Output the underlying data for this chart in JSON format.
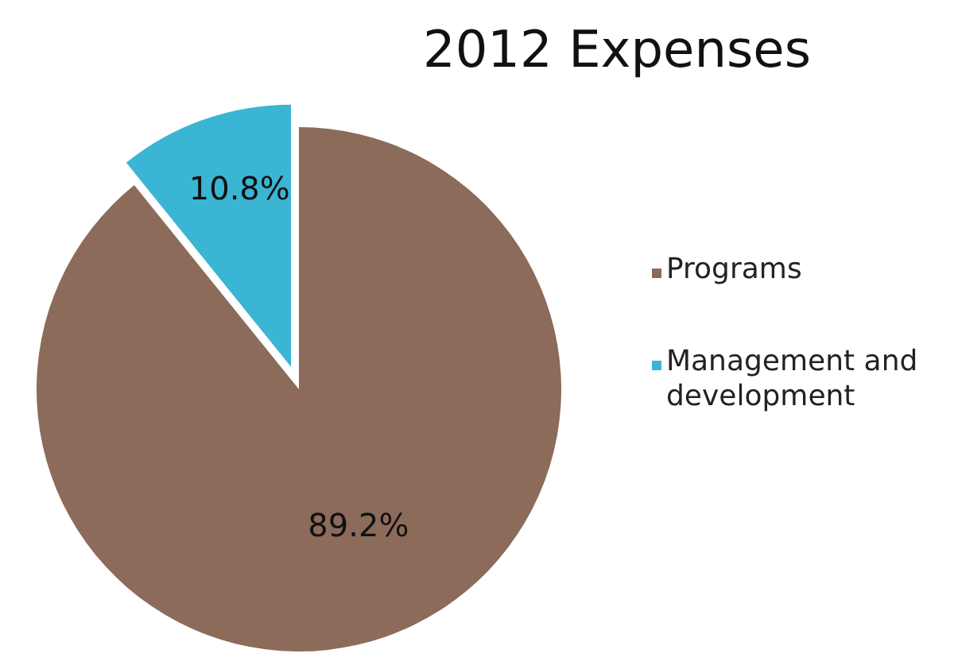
{
  "chart_data": {
    "type": "pie",
    "title": "2012 Expenses",
    "categories": [
      "Programs",
      "Management and development"
    ],
    "values": [
      89.2,
      10.8
    ],
    "colors": [
      "#8c6b5a",
      "#3ab5d3"
    ],
    "value_labels": [
      "89.2%",
      "10.8%"
    ],
    "legend": "right"
  }
}
